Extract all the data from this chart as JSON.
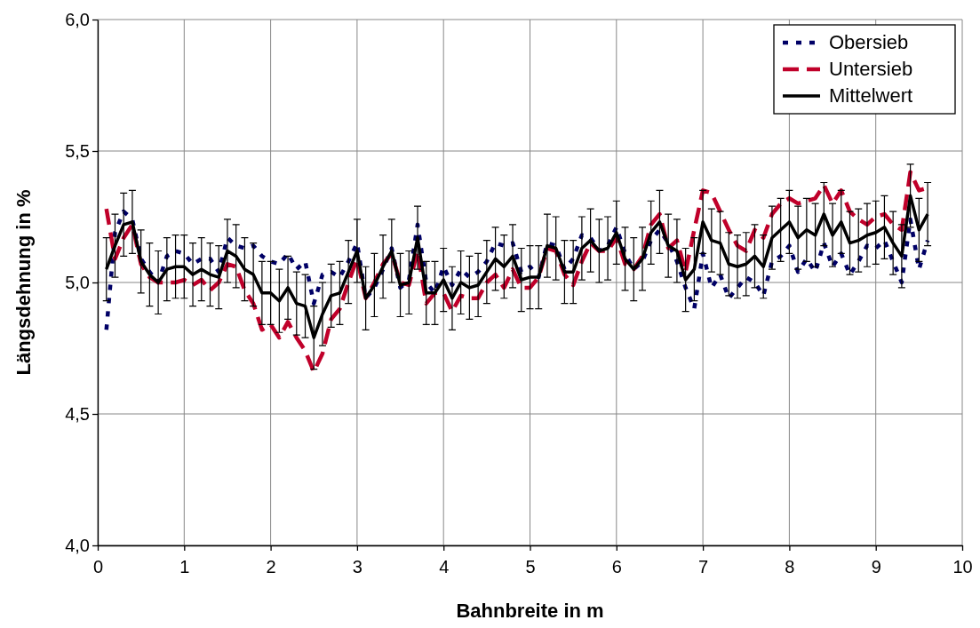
{
  "chart_data": {
    "type": "line",
    "xlabel": "Bahnbreite in m",
    "ylabel": "Längsdehnung in %",
    "x": [
      0.1,
      0.2,
      0.3,
      0.4,
      0.5,
      0.6,
      0.7,
      0.8,
      0.9,
      1.0,
      1.1,
      1.2,
      1.3,
      1.4,
      1.5,
      1.6,
      1.7,
      1.8,
      1.9,
      2.0,
      2.1,
      2.2,
      2.3,
      2.4,
      2.5,
      2.6,
      2.7,
      2.8,
      2.9,
      3.0,
      3.1,
      3.2,
      3.3,
      3.4,
      3.5,
      3.6,
      3.7,
      3.8,
      3.9,
      4.0,
      4.1,
      4.2,
      4.3,
      4.4,
      4.5,
      4.6,
      4.7,
      4.8,
      4.9,
      5.0,
      5.1,
      5.2,
      5.3,
      5.4,
      5.5,
      5.6,
      5.7,
      5.8,
      5.9,
      6.0,
      6.1,
      6.2,
      6.3,
      6.4,
      6.5,
      6.6,
      6.7,
      6.8,
      6.9,
      7.0,
      7.1,
      7.2,
      7.3,
      7.4,
      7.5,
      7.6,
      7.7,
      7.8,
      7.9,
      8.0,
      8.1,
      8.2,
      8.3,
      8.4,
      8.5,
      8.6,
      8.7,
      8.8,
      8.9,
      9.0,
      9.1,
      9.2,
      9.3,
      9.4,
      9.5,
      9.6
    ],
    "series": [
      {
        "name": "Obersieb",
        "color": "#000066",
        "line_style": "dotted",
        "values": [
          4.82,
          5.19,
          5.27,
          5.24,
          5.09,
          5.04,
          5.0,
          5.1,
          5.12,
          5.11,
          5.07,
          5.09,
          5.09,
          5.04,
          5.17,
          5.14,
          5.13,
          5.14,
          5.1,
          5.08,
          5.07,
          5.11,
          5.05,
          5.08,
          4.92,
          5.03,
          5.04,
          5.02,
          5.08,
          5.15,
          4.94,
          4.98,
          5.05,
          5.13,
          4.98,
          5.01,
          5.22,
          5.0,
          4.96,
          5.06,
          4.99,
          5.05,
          5.02,
          5.04,
          5.08,
          5.15,
          5.14,
          5.15,
          5.04,
          5.06,
          5.02,
          5.15,
          5.14,
          5.05,
          5.09,
          5.18,
          5.17,
          5.12,
          5.14,
          5.21,
          5.11,
          5.05,
          5.08,
          5.16,
          5.2,
          5.15,
          5.08,
          4.98,
          4.9,
          5.11,
          4.98,
          5.03,
          4.94,
          4.98,
          5.02,
          5.0,
          4.95,
          5.08,
          5.1,
          5.14,
          5.04,
          5.09,
          5.04,
          5.15,
          5.06,
          5.11,
          5.03,
          5.08,
          5.14,
          5.13,
          5.16,
          5.08,
          5.0,
          5.24,
          5.05,
          5.16
        ]
      },
      {
        "name": "Untersieb",
        "color": "#c0002a",
        "line_style": "dashed",
        "values": [
          5.28,
          5.09,
          5.17,
          5.22,
          5.07,
          5.02,
          5.0,
          5.0,
          5.0,
          5.01,
          4.99,
          5.01,
          4.97,
          5.0,
          5.07,
          5.06,
          4.97,
          4.92,
          4.82,
          4.84,
          4.79,
          4.85,
          4.79,
          4.74,
          4.66,
          4.73,
          4.86,
          4.9,
          5.0,
          5.09,
          4.94,
          5.0,
          5.07,
          5.11,
          5.0,
          4.99,
          5.12,
          4.92,
          4.96,
          4.96,
          4.89,
          4.95,
          4.94,
          4.94,
          5.0,
          5.03,
          4.98,
          5.05,
          4.98,
          4.98,
          5.02,
          5.13,
          5.12,
          5.03,
          4.99,
          5.08,
          5.15,
          5.12,
          5.12,
          5.17,
          5.07,
          5.05,
          5.1,
          5.22,
          5.26,
          5.13,
          5.16,
          5.04,
          5.2,
          5.35,
          5.34,
          5.27,
          5.2,
          5.14,
          5.12,
          5.2,
          5.17,
          5.26,
          5.3,
          5.32,
          5.3,
          5.31,
          5.32,
          5.37,
          5.3,
          5.35,
          5.27,
          5.24,
          5.22,
          5.25,
          5.26,
          5.22,
          5.2,
          5.42,
          5.35,
          5.36
        ]
      },
      {
        "name": "Mittelwert",
        "color": "#000000",
        "line_style": "solid",
        "values": [
          5.05,
          5.14,
          5.22,
          5.23,
          5.08,
          5.03,
          5.0,
          5.05,
          5.06,
          5.06,
          5.03,
          5.05,
          5.03,
          5.02,
          5.12,
          5.1,
          5.05,
          5.03,
          4.96,
          4.96,
          4.93,
          4.98,
          4.92,
          4.91,
          4.79,
          4.88,
          4.95,
          4.96,
          5.04,
          5.12,
          4.94,
          4.99,
          5.06,
          5.12,
          4.99,
          5.0,
          5.17,
          4.96,
          4.96,
          5.01,
          4.94,
          5.0,
          4.98,
          4.99,
          5.04,
          5.09,
          5.06,
          5.1,
          5.01,
          5.02,
          5.02,
          5.14,
          5.13,
          5.04,
          5.04,
          5.13,
          5.16,
          5.12,
          5.13,
          5.19,
          5.09,
          5.05,
          5.09,
          5.19,
          5.23,
          5.14,
          5.12,
          5.01,
          5.05,
          5.23,
          5.16,
          5.15,
          5.07,
          5.06,
          5.07,
          5.1,
          5.06,
          5.17,
          5.2,
          5.23,
          5.17,
          5.2,
          5.18,
          5.26,
          5.18,
          5.23,
          5.15,
          5.16,
          5.18,
          5.19,
          5.21,
          5.15,
          5.1,
          5.33,
          5.2,
          5.26
        ],
        "errors": [
          0.12,
          0.12,
          0.12,
          0.12,
          0.12,
          0.12,
          0.12,
          0.12,
          0.12,
          0.12,
          0.12,
          0.12,
          0.12,
          0.12,
          0.12,
          0.12,
          0.12,
          0.12,
          0.12,
          0.12,
          0.12,
          0.12,
          0.12,
          0.12,
          0.12,
          0.12,
          0.12,
          0.12,
          0.12,
          0.12,
          0.12,
          0.12,
          0.12,
          0.12,
          0.12,
          0.12,
          0.12,
          0.12,
          0.12,
          0.12,
          0.12,
          0.12,
          0.12,
          0.12,
          0.12,
          0.12,
          0.12,
          0.12,
          0.12,
          0.12,
          0.12,
          0.12,
          0.12,
          0.12,
          0.12,
          0.12,
          0.12,
          0.12,
          0.12,
          0.12,
          0.12,
          0.12,
          0.12,
          0.12,
          0.12,
          0.12,
          0.12,
          0.12,
          0.12,
          0.12,
          0.12,
          0.12,
          0.12,
          0.12,
          0.12,
          0.12,
          0.12,
          0.12,
          0.12,
          0.12,
          0.12,
          0.12,
          0.12,
          0.12,
          0.12,
          0.12,
          0.12,
          0.12,
          0.12,
          0.12,
          0.12,
          0.12,
          0.12,
          0.12,
          0.12,
          0.12
        ]
      }
    ],
    "xlim": [
      0,
      10
    ],
    "xticks": [
      0,
      1,
      2,
      3,
      4,
      5,
      6,
      7,
      8,
      9,
      10
    ],
    "ylim": [
      4.0,
      6.0
    ],
    "yticks": [
      {
        "value": 4.0,
        "label": "4,0"
      },
      {
        "value": 4.5,
        "label": "4,5"
      },
      {
        "value": 5.0,
        "label": "5,0"
      },
      {
        "value": 5.5,
        "label": "5,5"
      },
      {
        "value": 6.0,
        "label": "6,0"
      }
    ],
    "grid": true,
    "legend": "top right",
    "marker": "none"
  }
}
